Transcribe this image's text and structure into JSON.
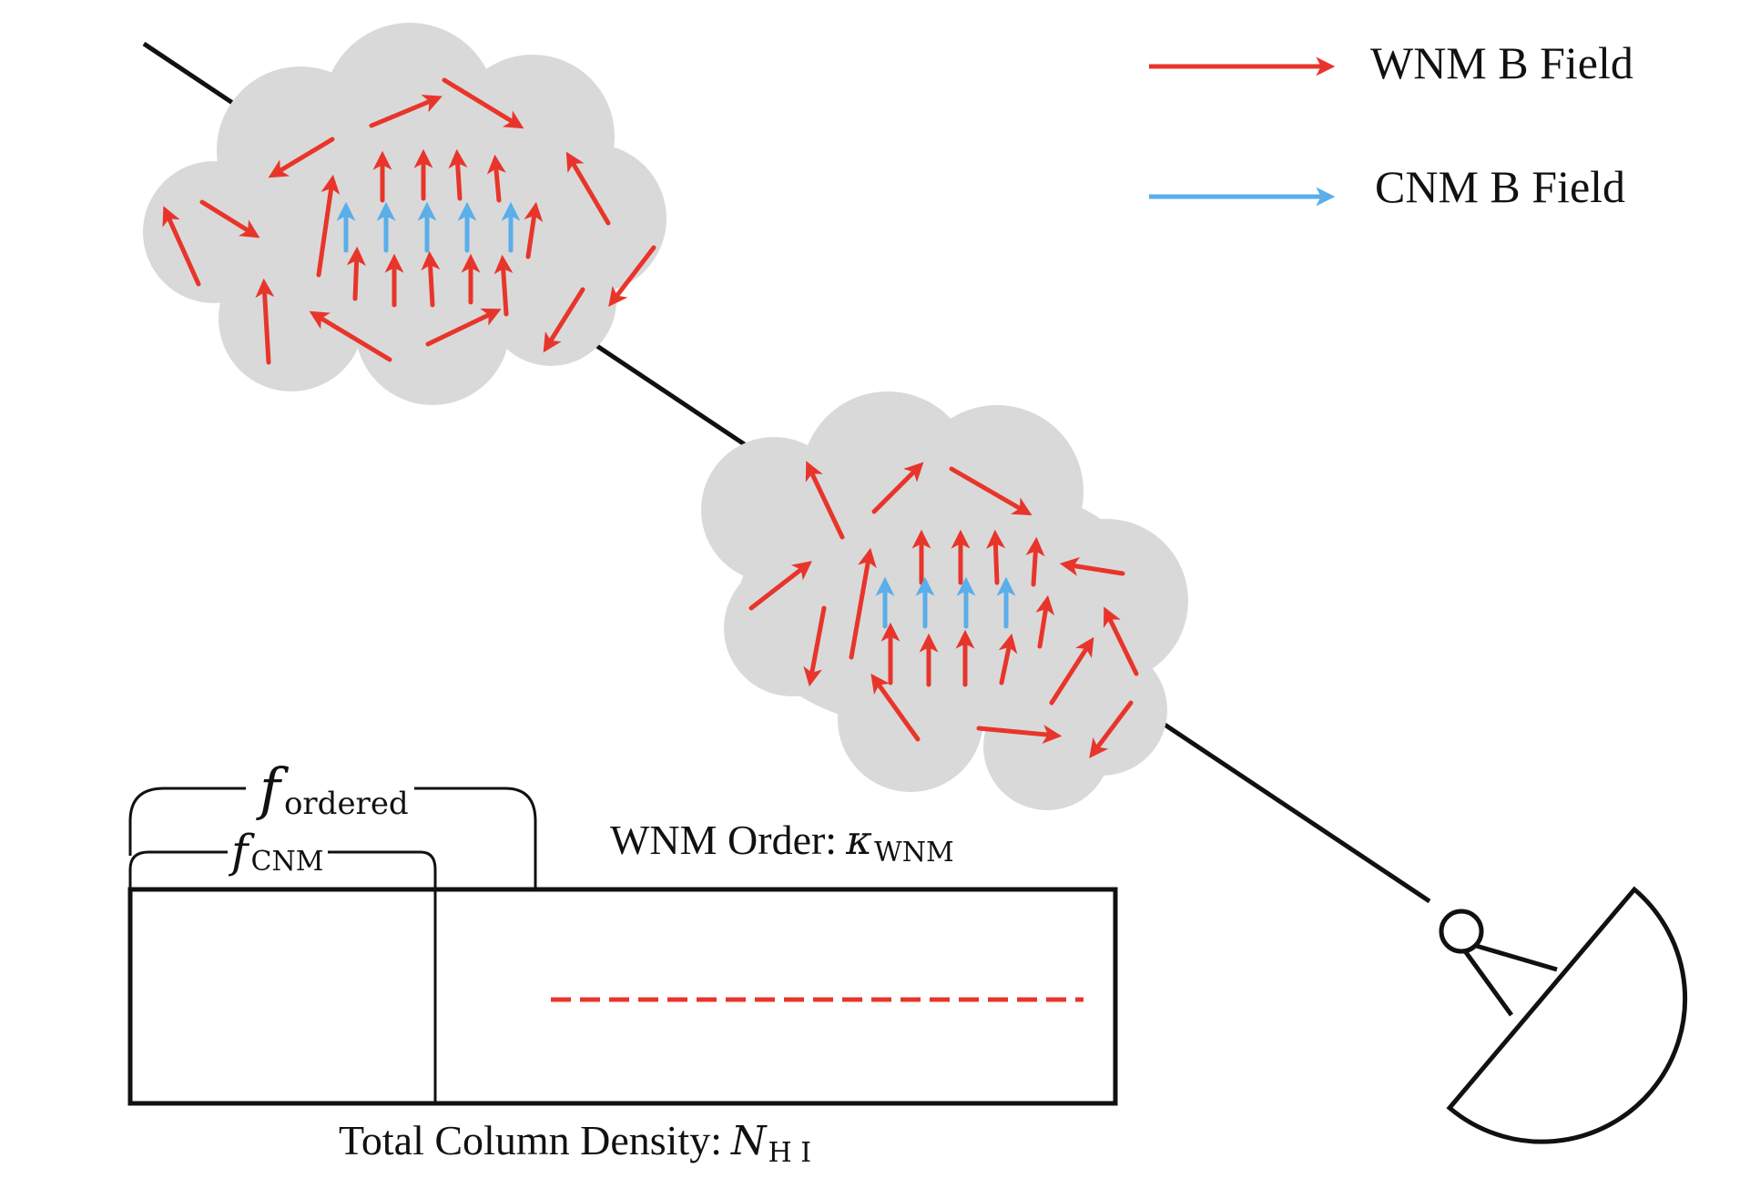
{
  "legend": {
    "wnm_label": "WNM B Field",
    "cnm_label": "CNM B Field"
  },
  "colors": {
    "wnm": "#e8352b",
    "cnm": "#5aaeea",
    "cloud": "#d8d8d8",
    "line": "#111111"
  },
  "labels": {
    "f_ordered_symbol": "f",
    "f_ordered_sub": "ordered",
    "f_cnm_symbol": "f",
    "f_cnm_sub": "CNM",
    "wnm_order_text": "WNM Order:",
    "kappa_symbol": "κ",
    "kappa_sub": "WNM",
    "column_density_text": "Total Column Density:",
    "n_symbol": "N",
    "n_sub": "H I"
  },
  "icons": {
    "telescope": "radio-telescope-dish-icon"
  }
}
